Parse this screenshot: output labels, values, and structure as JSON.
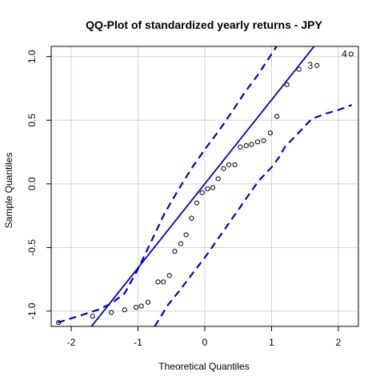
{
  "chart_data": {
    "type": "scatter",
    "title": "QQ-Plot of standardized yearly returns - JPY",
    "xlabel": "Theoretical Quantiles",
    "ylabel": "Sample Quantiles",
    "xlim": [
      -2.3,
      2.3
    ],
    "ylim": [
      -1.12,
      1.08
    ],
    "x_ticks": [
      -2,
      -1,
      0,
      1,
      2
    ],
    "x_tick_labels": [
      "-2",
      "-1",
      "0",
      "1",
      "2"
    ],
    "y_ticks": [
      -1.0,
      -0.5,
      0.0,
      0.5,
      1.0
    ],
    "y_tick_labels": [
      "-1.0",
      "-0.5",
      "0.0",
      "0.5",
      "1.0"
    ],
    "grid": true,
    "points": {
      "x": [
        -2.19,
        -1.68,
        -1.4,
        -1.2,
        -1.03,
        -0.95,
        -0.85,
        -0.7,
        -0.62,
        -0.53,
        -0.45,
        -0.36,
        -0.28,
        -0.2,
        -0.12,
        -0.04,
        0.04,
        0.12,
        0.2,
        0.28,
        0.36,
        0.45,
        0.53,
        0.62,
        0.7,
        0.79,
        0.88,
        0.98,
        1.08,
        1.23,
        1.41,
        1.68,
        2.19
      ],
      "y": [
        -1.09,
        -1.04,
        -1.01,
        -0.99,
        -0.97,
        -0.96,
        -0.93,
        -0.77,
        -0.77,
        -0.72,
        -0.53,
        -0.47,
        -0.4,
        -0.27,
        -0.15,
        -0.07,
        -0.04,
        -0.03,
        0.04,
        0.12,
        0.15,
        0.15,
        0.29,
        0.3,
        0.31,
        0.33,
        0.34,
        0.4,
        0.53,
        0.78,
        0.9,
        0.93,
        1.02
      ]
    },
    "reference_line": {
      "intercept": 0.0,
      "slope": 0.66
    },
    "envelope": {
      "x": [
        -2.2,
        -1.9,
        -1.6,
        -1.4,
        -1.2,
        -1.0,
        -0.8,
        -0.6,
        -0.4,
        -0.2,
        0.0,
        0.2,
        0.4,
        0.6,
        0.8,
        1.0,
        1.1
      ],
      "upper": [
        -1.09,
        -1.04,
        -0.99,
        -0.94,
        -0.86,
        -0.67,
        -0.45,
        -0.23,
        -0.05,
        0.12,
        0.27,
        0.41,
        0.56,
        0.72,
        0.86,
        1.02,
        1.1
      ]
    },
    "envelope_lower": {
      "x": [
        -0.75,
        -0.55,
        -0.35,
        -0.15,
        0.0,
        0.2,
        0.4,
        0.6,
        0.8,
        1.0,
        1.1,
        1.2,
        1.4,
        1.6,
        1.8,
        2.0,
        2.2
      ],
      "lower": [
        -1.12,
        -0.95,
        -0.82,
        -0.68,
        -0.58,
        -0.43,
        -0.28,
        -0.13,
        0.02,
        0.13,
        0.2,
        0.29,
        0.4,
        0.51,
        0.55,
        0.58,
        0.62
      ]
    },
    "annotations": [
      {
        "text": "4",
        "x": 2.19,
        "y": 1.02
      },
      {
        "text": "3",
        "x": 1.68,
        "y": 0.93
      }
    ],
    "point_color": "#000000",
    "line_color": "#0000cd",
    "grid_color": "#d3d3d3"
  }
}
